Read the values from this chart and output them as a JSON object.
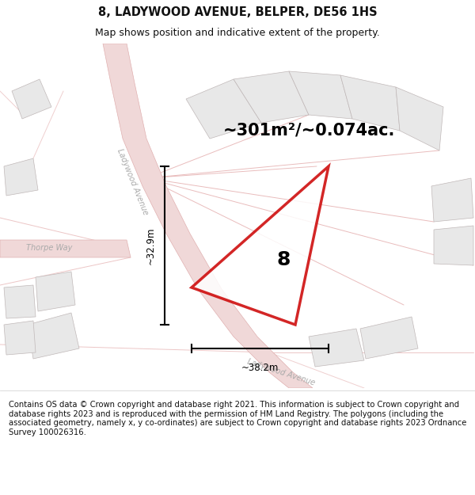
{
  "title": "8, LADYWOOD AVENUE, BELPER, DE56 1HS",
  "subtitle": "Map shows position and indicative extent of the property.",
  "footer": "Contains OS data © Crown copyright and database right 2021. This information is subject to Crown copyright and database rights 2023 and is reproduced with the permission of HM Land Registry. The polygons (including the associated geometry, namely x, y co-ordinates) are subject to Crown copyright and database rights 2023 Ordnance Survey 100026316.",
  "area_text": "~301m²/~0.074ac.",
  "label_8": "8",
  "dim_vertical": "~32.9m",
  "dim_horizontal": "~38.2m",
  "road_color": "#f0d8d8",
  "road_edge": "#e0b0b0",
  "building_fill": "#e8e8e8",
  "building_edge": "#c0b8b8",
  "plot_color": "#cc0000",
  "map_bg": "#f9f7f7",
  "title_color": "#111111",
  "footer_color": "#111111",
  "footer_bg": "#ffffff",
  "header_bg": "#ffffff",
  "fig_width": 6.0,
  "fig_height": 6.25
}
